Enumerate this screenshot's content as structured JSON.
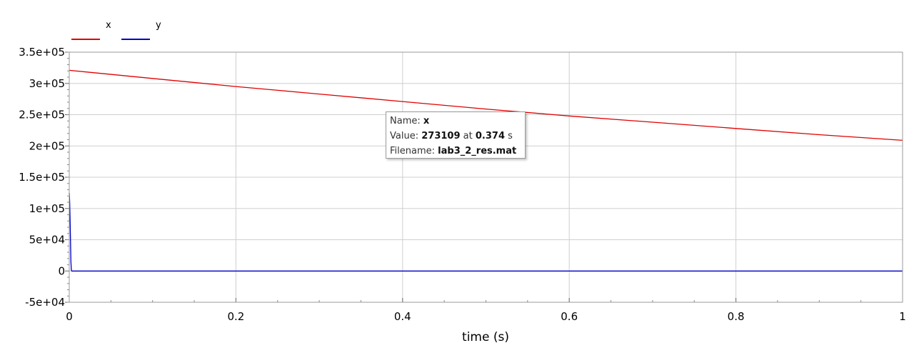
{
  "chart_data": {
    "type": "line",
    "title": "",
    "xlabel": "time (s)",
    "ylabel": "",
    "xlim": [
      0,
      1
    ],
    "ylim": [
      -50000,
      350000
    ],
    "x_ticks": [
      0,
      0.2,
      0.4,
      0.6,
      0.8,
      1
    ],
    "x_tick_labels": [
      "0",
      "0.2",
      "0.4",
      "0.6",
      "0.8",
      "1"
    ],
    "y_ticks": [
      -50000,
      0,
      50000,
      100000,
      150000,
      200000,
      250000,
      300000,
      350000
    ],
    "y_tick_labels": [
      "-5e+04",
      "0",
      "5e+04",
      "1e+05",
      "1.5e+05",
      "2e+05",
      "2.5e+05",
      "3e+05",
      "3.5e+05"
    ],
    "grid": true,
    "legend_position": "top-left",
    "series": [
      {
        "name": "x",
        "color": "#e00000",
        "x": [
          0,
          0.1,
          0.2,
          0.3,
          0.4,
          0.5,
          0.6,
          0.7,
          0.8,
          0.9,
          1.0
        ],
        "y": [
          321000,
          308000,
          295000,
          283000,
          271000,
          259000,
          248000,
          238000,
          228000,
          218000,
          209000
        ]
      },
      {
        "name": "y",
        "color": "#0000c8",
        "x": [
          0,
          0.0005,
          0.001,
          0.0015,
          0.002,
          0.0025,
          0.003,
          1.0
        ],
        "y": [
          125000,
          110000,
          80000,
          45000,
          15000,
          2000,
          0,
          0
        ]
      }
    ]
  },
  "tooltip": {
    "name_label": "Name:",
    "name_value": "x",
    "value_label": "Value:",
    "value_value": "273109",
    "at_label": "at",
    "time_value": "0.374",
    "time_unit": "s",
    "filename_label": "Filename:",
    "filename_value": "lab3_2_res.mat"
  }
}
